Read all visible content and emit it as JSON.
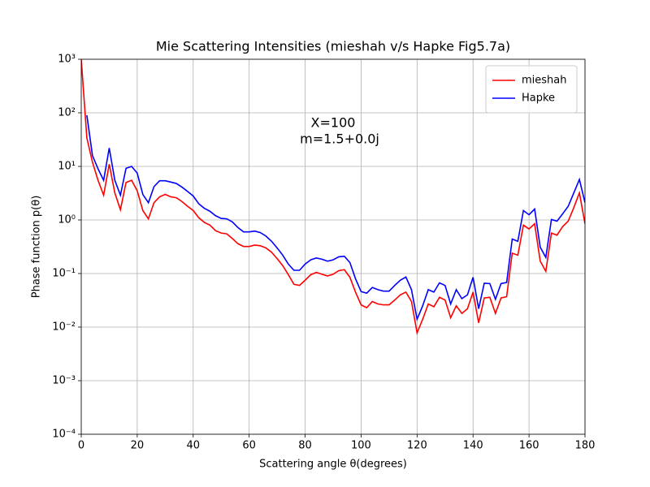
{
  "chart_data": {
    "type": "line",
    "title": "Mie Scattering Intensities (mieshah v/s Hapke Fig5.7a)",
    "xlabel": "Scattering angle θ(degrees)",
    "ylabel": "Phase function p(θ)",
    "annotations": [
      "X=100",
      "m=1.5+0.0j"
    ],
    "x": [
      0,
      2,
      4,
      6,
      8,
      10,
      12,
      14,
      16,
      18,
      20,
      22,
      24,
      26,
      28,
      30,
      32,
      34,
      36,
      38,
      40,
      42,
      44,
      46,
      48,
      50,
      52,
      54,
      56,
      58,
      60,
      62,
      64,
      66,
      68,
      70,
      72,
      74,
      76,
      78,
      80,
      82,
      84,
      86,
      88,
      90,
      92,
      94,
      96,
      98,
      100,
      102,
      104,
      106,
      108,
      110,
      112,
      114,
      116,
      118,
      120,
      122,
      124,
      126,
      128,
      130,
      132,
      134,
      136,
      138,
      140,
      142,
      144,
      146,
      148,
      150,
      152,
      154,
      156,
      158,
      160,
      162,
      164,
      166,
      168,
      170,
      172,
      174,
      176,
      178,
      180
    ],
    "series": [
      {
        "name": "mieshah",
        "color": "#ff0000",
        "values": [
          1000,
          34,
          12,
          5.5,
          2.9,
          11,
          3.2,
          1.55,
          5,
          5.5,
          3.5,
          1.5,
          1.05,
          2.1,
          2.7,
          3.0,
          2.7,
          2.6,
          2.2,
          1.8,
          1.5,
          1.1,
          0.9,
          0.8,
          0.63,
          0.57,
          0.55,
          0.45,
          0.36,
          0.32,
          0.32,
          0.34,
          0.33,
          0.3,
          0.25,
          0.19,
          0.14,
          0.095,
          0.063,
          0.06,
          0.075,
          0.095,
          0.105,
          0.097,
          0.09,
          0.097,
          0.113,
          0.118,
          0.085,
          0.045,
          0.026,
          0.023,
          0.03,
          0.027,
          0.026,
          0.026,
          0.032,
          0.04,
          0.045,
          0.03,
          0.0078,
          0.014,
          0.027,
          0.024,
          0.036,
          0.032,
          0.015,
          0.025,
          0.018,
          0.022,
          0.045,
          0.012,
          0.035,
          0.036,
          0.018,
          0.035,
          0.037,
          0.24,
          0.22,
          0.8,
          0.68,
          0.85,
          0.17,
          0.11,
          0.57,
          0.52,
          0.75,
          0.95,
          1.7,
          3.2,
          0.85
        ]
      },
      {
        "name": "Hapke",
        "color": "#0000ff",
        "values": [
          null,
          90,
          16,
          9,
          5.5,
          22,
          5.5,
          2.9,
          9.2,
          10,
          7.5,
          3,
          2.1,
          4.2,
          5.4,
          5.4,
          5.1,
          4.8,
          4.1,
          3.4,
          2.8,
          2,
          1.65,
          1.45,
          1.2,
          1.07,
          1.05,
          0.92,
          0.72,
          0.6,
          0.6,
          0.62,
          0.58,
          0.5,
          0.4,
          0.3,
          0.22,
          0.15,
          0.115,
          0.115,
          0.15,
          0.18,
          0.195,
          0.185,
          0.17,
          0.18,
          0.205,
          0.21,
          0.16,
          0.08,
          0.046,
          0.043,
          0.055,
          0.05,
          0.047,
          0.047,
          0.06,
          0.075,
          0.086,
          0.05,
          0.014,
          0.025,
          0.05,
          0.045,
          0.067,
          0.06,
          0.027,
          0.05,
          0.034,
          0.04,
          0.085,
          0.022,
          0.066,
          0.065,
          0.033,
          0.065,
          0.068,
          0.44,
          0.4,
          1.5,
          1.25,
          1.6,
          0.31,
          0.2,
          1.02,
          0.95,
          1.3,
          1.8,
          3.2,
          5.7,
          2.1
        ]
      }
    ],
    "xlim": [
      0,
      180
    ],
    "xticks": [
      0,
      20,
      40,
      60,
      80,
      100,
      120,
      140,
      160,
      180
    ],
    "ylim": [
      0.0001,
      1000
    ],
    "ylog": true,
    "yticks": [
      {
        "value": 0.0001,
        "label": "10⁻⁴"
      },
      {
        "value": 0.001,
        "label": "10⁻³"
      },
      {
        "value": 0.01,
        "label": "10⁻²"
      },
      {
        "value": 0.1,
        "label": "10⁻¹"
      },
      {
        "value": 1,
        "label": "10⁰"
      },
      {
        "value": 10,
        "label": "10¹"
      },
      {
        "value": 100,
        "label": "10²"
      },
      {
        "value": 1000,
        "label": "10³"
      }
    ],
    "grid": true,
    "legend": "upper right"
  }
}
